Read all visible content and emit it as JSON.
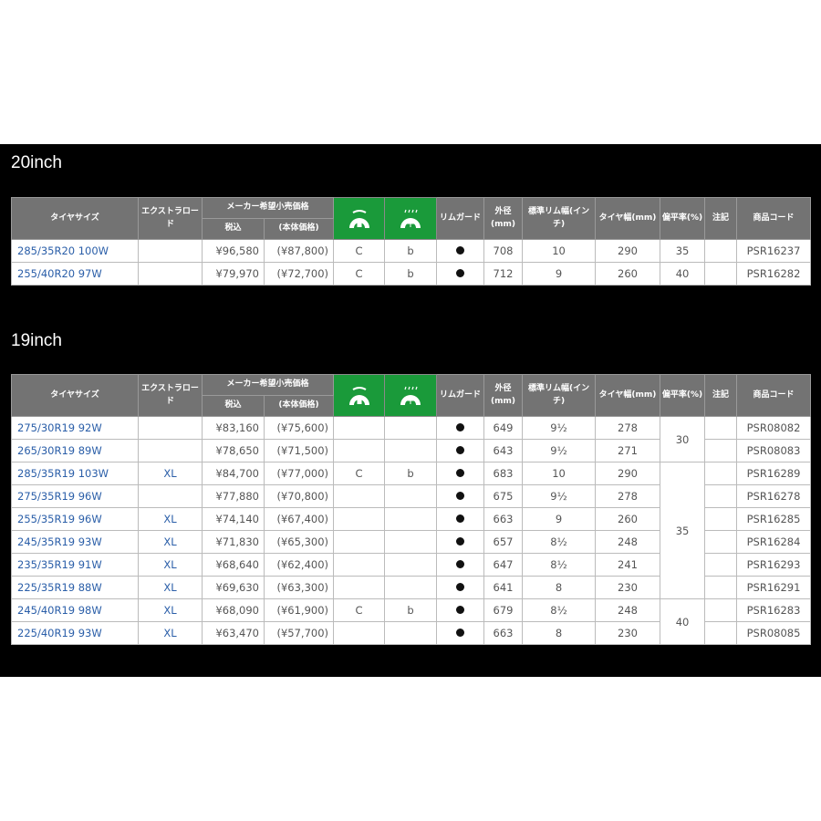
{
  "headers": {
    "size": "タイヤサイズ",
    "xl": "エクストラロード",
    "price": "メーカー希望小売価格",
    "tax_incl": "税込",
    "body_price": "(本体価格)",
    "rim_guard": "リムガード",
    "outer": "外径(mm)",
    "rim_width": "標準リム幅(インチ)",
    "tire_width": "タイヤ幅(mm)",
    "aspect": "偏平率(%)",
    "note": "注記",
    "code": "商品コード"
  },
  "icons": {
    "fuel": "fuel-efficiency-icon",
    "wet": "wet-grip-icon",
    "accent": "#1a9a3a"
  },
  "sections": [
    {
      "title": "20inch",
      "rows": [
        {
          "size": "285/35R20 100W",
          "xl": "",
          "tax": "¥96,580",
          "body": "(¥87,800)",
          "fuel": "C",
          "wet": "b",
          "outer": "708",
          "rim": "10",
          "width": "290",
          "aspect": "35",
          "note": "",
          "code": "PSR16237"
        },
        {
          "size": "255/40R20 97W",
          "xl": "",
          "tax": "¥79,970",
          "body": "(¥72,700)",
          "fuel": "C",
          "wet": "b",
          "outer": "712",
          "rim": "9",
          "width": "260",
          "aspect": "40",
          "note": "",
          "code": "PSR16282"
        }
      ]
    },
    {
      "title": "19inch",
      "aspect_groups": [
        {
          "value": "30",
          "rows": 2
        },
        {
          "value": "35",
          "rows": 6
        },
        {
          "value": "40",
          "rows": 2
        }
      ],
      "rows": [
        {
          "size": "275/30R19 92W",
          "xl": "",
          "tax": "¥83,160",
          "body": "(¥75,600)",
          "fuel": "",
          "wet": "",
          "outer": "649",
          "rim": "9½",
          "width": "278",
          "note": "",
          "code": "PSR08082"
        },
        {
          "size": "265/30R19 89W",
          "xl": "",
          "tax": "¥78,650",
          "body": "(¥71,500)",
          "fuel": "",
          "wet": "",
          "outer": "643",
          "rim": "9½",
          "width": "271",
          "note": "",
          "code": "PSR08083"
        },
        {
          "size": "285/35R19 103W",
          "xl": "XL",
          "tax": "¥84,700",
          "body": "(¥77,000)",
          "fuel": "C",
          "wet": "b",
          "outer": "683",
          "rim": "10",
          "width": "290",
          "note": "",
          "code": "PSR16289"
        },
        {
          "size": "275/35R19 96W",
          "xl": "",
          "tax": "¥77,880",
          "body": "(¥70,800)",
          "fuel": "",
          "wet": "",
          "outer": "675",
          "rim": "9½",
          "width": "278",
          "note": "",
          "code": "PSR16278"
        },
        {
          "size": "255/35R19 96W",
          "xl": "XL",
          "tax": "¥74,140",
          "body": "(¥67,400)",
          "fuel": "",
          "wet": "",
          "outer": "663",
          "rim": "9",
          "width": "260",
          "note": "",
          "code": "PSR16285"
        },
        {
          "size": "245/35R19 93W",
          "xl": "XL",
          "tax": "¥71,830",
          "body": "(¥65,300)",
          "fuel": "",
          "wet": "",
          "outer": "657",
          "rim": "8½",
          "width": "248",
          "note": "",
          "code": "PSR16284"
        },
        {
          "size": "235/35R19 91W",
          "xl": "XL",
          "tax": "¥68,640",
          "body": "(¥62,400)",
          "fuel": "",
          "wet": "",
          "outer": "647",
          "rim": "8½",
          "width": "241",
          "note": "",
          "code": "PSR16293"
        },
        {
          "size": "225/35R19 88W",
          "xl": "XL",
          "tax": "¥69,630",
          "body": "(¥63,300)",
          "fuel": "",
          "wet": "",
          "outer": "641",
          "rim": "8",
          "width": "230",
          "note": "",
          "code": "PSR16291"
        },
        {
          "size": "245/40R19 98W",
          "xl": "XL",
          "tax": "¥68,090",
          "body": "(¥61,900)",
          "fuel": "C",
          "wet": "b",
          "outer": "679",
          "rim": "8½",
          "width": "248",
          "note": "",
          "code": "PSR16283"
        },
        {
          "size": "225/40R19 93W",
          "xl": "XL",
          "tax": "¥63,470",
          "body": "(¥57,700)",
          "fuel": "",
          "wet": "",
          "outer": "663",
          "rim": "8",
          "width": "230",
          "note": "",
          "code": "PSR08085"
        }
      ]
    }
  ]
}
